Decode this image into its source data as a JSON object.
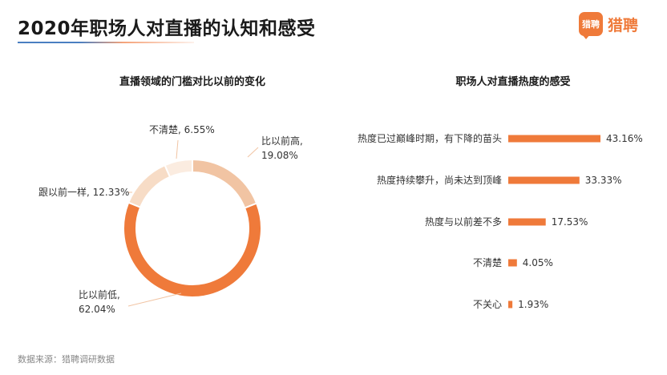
{
  "page": {
    "title": "2020年职场人对直播的认知和感受",
    "logo_badge": "猎聘",
    "logo_text": "猎聘",
    "source": "数据来源：猎聘调研数据"
  },
  "colors": {
    "accent": "#ef7a3a",
    "light_peach": "#f1c4a3",
    "lighter_peach": "#f7dcc6",
    "pale_peach": "#fbece0"
  },
  "chart_data": [
    {
      "type": "pie",
      "title": "直播领域的门槛对比以前的变化",
      "donut": true,
      "slices": [
        {
          "label": "比以前高,",
          "value_label": "19.08%",
          "value": 19.08,
          "color": "#f1c4a3"
        },
        {
          "label": "比以前低,",
          "value_label": "62.04%",
          "value": 62.04,
          "color": "#ef7a3a"
        },
        {
          "label": "跟以前一样,",
          "value_label": "12.33%",
          "value": 12.33,
          "color": "#f7dcc6"
        },
        {
          "label": "不清楚,",
          "value_label": "6.55%",
          "value": 6.55,
          "color": "#fbece0"
        }
      ]
    },
    {
      "type": "bar",
      "orientation": "horizontal",
      "title": "职场人对直播热度的感受",
      "categories": [
        "热度已过巅峰时期，有下降的苗头",
        "热度持续攀升，尚未达到顶峰",
        "热度与以前差不多",
        "不清楚",
        "不关心"
      ],
      "values": [
        43.16,
        33.33,
        17.53,
        4.05,
        1.93
      ],
      "value_labels": [
        "43.16%",
        "33.33%",
        "17.53%",
        "4.05%",
        "1.93%"
      ],
      "color": "#ef7a3a"
    }
  ]
}
